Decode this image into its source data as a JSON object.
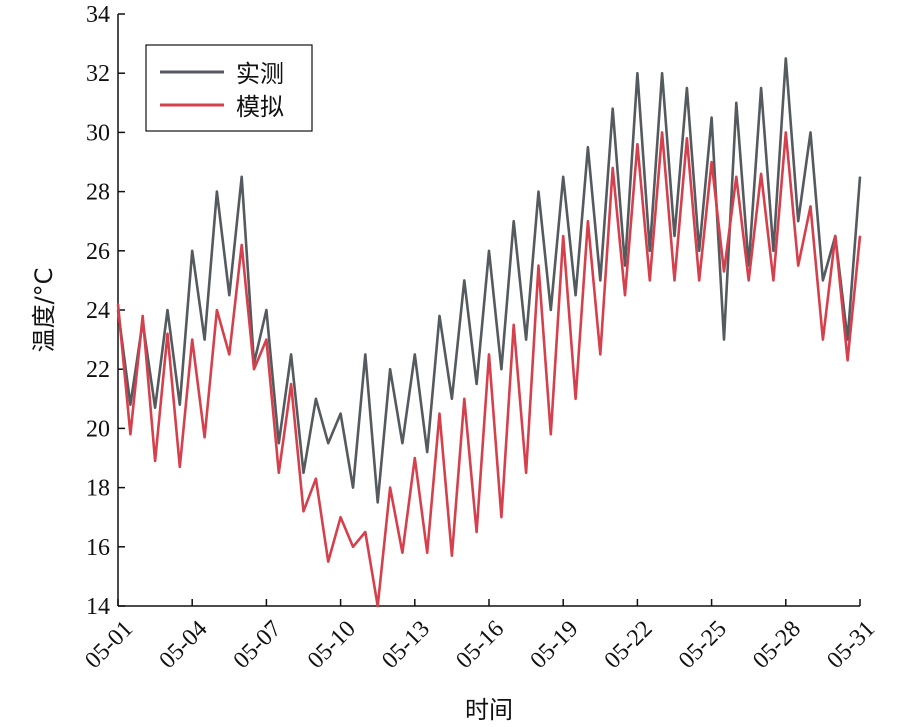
{
  "chart_data": {
    "type": "line",
    "xlabel": "时间",
    "ylabel": "温度/°C",
    "ylim": [
      14,
      34
    ],
    "xlim": [
      "05-01",
      "05-31"
    ],
    "yticks": [
      14,
      16,
      18,
      20,
      22,
      24,
      26,
      28,
      30,
      32,
      34
    ],
    "xticks": [
      "05-01",
      "05-04",
      "05-07",
      "05-10",
      "05-13",
      "05-16",
      "05-19",
      "05-22",
      "05-25",
      "05-28",
      "05-31"
    ],
    "legend_position": "top-left",
    "grid": false,
    "series": [
      {
        "name": "实测",
        "color": "#555a5f",
        "x": [
          "05-01",
          "05-01 12:00",
          "05-02",
          "05-02 12:00",
          "05-03",
          "05-03 12:00",
          "05-04",
          "05-04 12:00",
          "05-05",
          "05-05 12:00",
          "05-06",
          "05-06 12:00",
          "05-07",
          "05-07 12:00",
          "05-08",
          "05-08 12:00",
          "05-09",
          "05-09 12:00",
          "05-10",
          "05-10 12:00",
          "05-11",
          "05-11 12:00",
          "05-12",
          "05-12 12:00",
          "05-13",
          "05-13 12:00",
          "05-14",
          "05-14 12:00",
          "05-15",
          "05-15 12:00",
          "05-16",
          "05-16 12:00",
          "05-17",
          "05-17 12:00",
          "05-18",
          "05-18 12:00",
          "05-19",
          "05-19 12:00",
          "05-20",
          "05-20 12:00",
          "05-21",
          "05-21 12:00",
          "05-22",
          "05-22 12:00",
          "05-23",
          "05-23 12:00",
          "05-24",
          "05-24 12:00",
          "05-25",
          "05-25 12:00",
          "05-26",
          "05-26 12:00",
          "05-27",
          "05-27 12:00",
          "05-28",
          "05-28 12:00",
          "05-29",
          "05-29 12:00",
          "05-30",
          "05-30 12:00",
          "05-31"
        ],
        "y": [
          24.0,
          20.8,
          23.6,
          20.7,
          24.0,
          20.8,
          26.0,
          23.0,
          28.0,
          24.5,
          28.5,
          22.2,
          24.0,
          19.5,
          22.5,
          18.5,
          21.0,
          19.5,
          20.5,
          18.0,
          22.5,
          17.5,
          22.0,
          19.5,
          22.5,
          19.2,
          23.8,
          21.0,
          25.0,
          21.5,
          26.0,
          22.0,
          27.0,
          23.0,
          28.0,
          24.0,
          28.5,
          24.5,
          29.5,
          25.0,
          30.8,
          25.5,
          32.0,
          26.0,
          32.0,
          26.5,
          31.5,
          26.0,
          30.5,
          23.0,
          31.0,
          25.5,
          31.5,
          26.0,
          32.5,
          27.0,
          30.0,
          25.0,
          26.5,
          23.0,
          28.5
        ]
      },
      {
        "name": "模拟",
        "color": "#d6404d",
        "x": [
          "05-01",
          "05-01 12:00",
          "05-02",
          "05-02 12:00",
          "05-03",
          "05-03 12:00",
          "05-04",
          "05-04 12:00",
          "05-05",
          "05-05 12:00",
          "05-06",
          "05-06 12:00",
          "05-07",
          "05-07 12:00",
          "05-08",
          "05-08 12:00",
          "05-09",
          "05-09 12:00",
          "05-10",
          "05-10 12:00",
          "05-11",
          "05-11 12:00",
          "05-12",
          "05-12 12:00",
          "05-13",
          "05-13 12:00",
          "05-14",
          "05-14 12:00",
          "05-15",
          "05-15 12:00",
          "05-16",
          "05-16 12:00",
          "05-17",
          "05-17 12:00",
          "05-18",
          "05-18 12:00",
          "05-19",
          "05-19 12:00",
          "05-20",
          "05-20 12:00",
          "05-21",
          "05-21 12:00",
          "05-22",
          "05-22 12:00",
          "05-23",
          "05-23 12:00",
          "05-24",
          "05-24 12:00",
          "05-25",
          "05-25 12:00",
          "05-26",
          "05-26 12:00",
          "05-27",
          "05-27 12:00",
          "05-28",
          "05-28 12:00",
          "05-29",
          "05-29 12:00",
          "05-30",
          "05-30 12:00",
          "05-31"
        ],
        "y": [
          24.2,
          19.8,
          23.8,
          18.9,
          23.2,
          18.7,
          23.0,
          19.7,
          24.0,
          22.5,
          26.2,
          22.0,
          23.0,
          18.5,
          21.5,
          17.2,
          18.3,
          15.5,
          17.0,
          16.0,
          16.5,
          14.0,
          18.0,
          15.8,
          19.0,
          15.8,
          20.5,
          15.7,
          21.0,
          16.5,
          22.5,
          17.0,
          23.5,
          18.5,
          25.5,
          19.8,
          26.5,
          21.0,
          27.0,
          22.5,
          28.8,
          24.5,
          29.6,
          25.0,
          30.0,
          25.0,
          29.8,
          25.0,
          29.0,
          25.3,
          28.5,
          25.0,
          28.6,
          25.0,
          30.0,
          25.5,
          27.5,
          23.0,
          26.5,
          22.3,
          26.5
        ]
      }
    ]
  }
}
